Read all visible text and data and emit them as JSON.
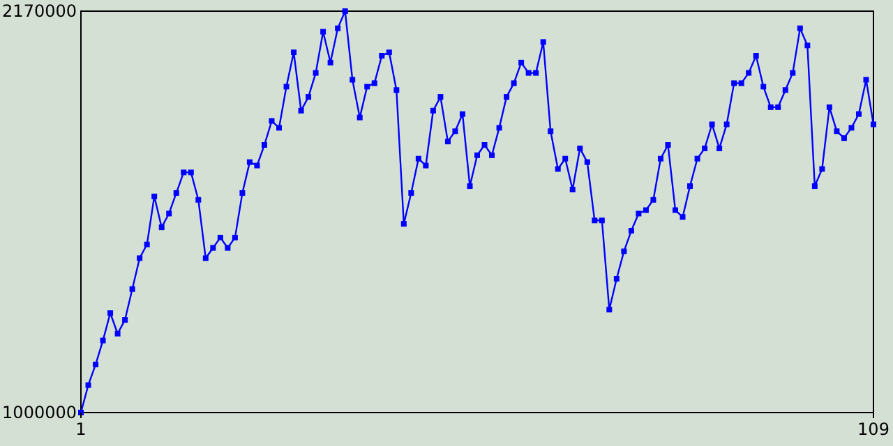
{
  "chart_data": {
    "type": "line",
    "marker": "square",
    "xlim": [
      1,
      109
    ],
    "xticks": [
      1,
      109
    ],
    "ylim": [
      1000000,
      2170000
    ],
    "yticks": [
      1000000,
      2170000
    ],
    "x": [
      1,
      2,
      3,
      4,
      5,
      6,
      7,
      8,
      9,
      10,
      11,
      12,
      13,
      14,
      15,
      16,
      17,
      18,
      19,
      20,
      21,
      22,
      23,
      24,
      25,
      26,
      27,
      28,
      29,
      30,
      31,
      32,
      33,
      34,
      35,
      36,
      37,
      38,
      39,
      40,
      41,
      42,
      43,
      44,
      45,
      46,
      47,
      48,
      49,
      50,
      51,
      52,
      53,
      54,
      55,
      56,
      57,
      58,
      59,
      60,
      61,
      62,
      63,
      64,
      65,
      66,
      67,
      68,
      69,
      70,
      71,
      72,
      73,
      74,
      75,
      76,
      77,
      78,
      79,
      80,
      81,
      82,
      83,
      84,
      85,
      86,
      87,
      88,
      89,
      90,
      91,
      92,
      93,
      94,
      95,
      96,
      97,
      98,
      99,
      100,
      101,
      102,
      103,
      104,
      105,
      106,
      107,
      108,
      109
    ],
    "series": [
      {
        "color": "#0000ff",
        "values": [
          1000000,
          1080000,
          1140000,
          1210000,
          1290000,
          1230000,
          1270000,
          1360000,
          1450000,
          1490000,
          1630000,
          1540000,
          1580000,
          1640000,
          1700000,
          1700000,
          1620000,
          1450000,
          1480000,
          1510000,
          1480000,
          1510000,
          1640000,
          1730000,
          1720000,
          1780000,
          1850000,
          1830000,
          1950000,
          2050000,
          1880000,
          1920000,
          1990000,
          2110000,
          2020000,
          2120000,
          2170000,
          1970000,
          1860000,
          1950000,
          1960000,
          2040000,
          2050000,
          1940000,
          1550000,
          1640000,
          1740000,
          1720000,
          1880000,
          1920000,
          1790000,
          1820000,
          1870000,
          1660000,
          1750000,
          1780000,
          1750000,
          1830000,
          1920000,
          1960000,
          2020000,
          1990000,
          1990000,
          2080000,
          1820000,
          1710000,
          1740000,
          1650000,
          1770000,
          1730000,
          1560000,
          1560000,
          1300000,
          1390000,
          1470000,
          1530000,
          1580000,
          1590000,
          1620000,
          1740000,
          1780000,
          1590000,
          1570000,
          1660000,
          1740000,
          1770000,
          1840000,
          1770000,
          1840000,
          1960000,
          1960000,
          1990000,
          2040000,
          1950000,
          1890000,
          1890000,
          1940000,
          1990000,
          2120000,
          2070000,
          1660000,
          1710000,
          1890000,
          1820000,
          1800000,
          1830000,
          1870000,
          1970000,
          1840000
        ]
      }
    ]
  }
}
